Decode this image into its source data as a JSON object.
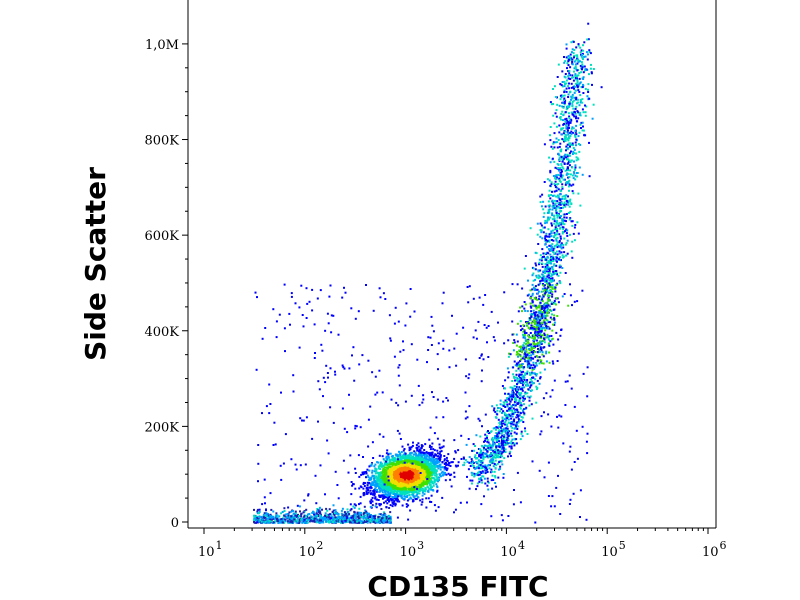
{
  "chart_data": {
    "type": "scatter",
    "title": "",
    "xlabel": "CD135 FITC",
    "ylabel": "Side Scatter",
    "x_scale": "log",
    "x_range": [
      10,
      1000000
    ],
    "y_range": [
      0,
      1050000
    ],
    "x_ticks": [
      {
        "value": 10,
        "base": "10",
        "exp": "1"
      },
      {
        "value": 100,
        "base": "10",
        "exp": "2"
      },
      {
        "value": 1000,
        "base": "10",
        "exp": "3"
      },
      {
        "value": 10000,
        "base": "10",
        "exp": "4"
      },
      {
        "value": 100000,
        "base": "10",
        "exp": "5"
      },
      {
        "value": 1000000,
        "base": "10",
        "exp": "6"
      }
    ],
    "y_ticks": [
      {
        "value": 0,
        "label": "0"
      },
      {
        "value": 200000,
        "label": "200K"
      },
      {
        "value": 400000,
        "label": "400K"
      },
      {
        "value": 600000,
        "label": "600K"
      },
      {
        "value": 800000,
        "label": "800K"
      },
      {
        "value": 1000000,
        "label": "1,0M"
      }
    ],
    "grid": false,
    "legend": "none",
    "density_colors": [
      "#1f1fb0",
      "#0000ff",
      "#00a0ff",
      "#00e0c0",
      "#40e000",
      "#f0e000",
      "#ff8000",
      "#e00000"
    ],
    "populations": [
      {
        "name_hint": "CD135-low cluster",
        "center_x": 1000,
        "center_y": 100000,
        "spread_log_x": 0.17,
        "spread_y": 22000,
        "density": "high"
      },
      {
        "name_hint": "CD135-high curved tail",
        "path": [
          [
            5000,
            100000
          ],
          [
            10000,
            200000
          ],
          [
            17000,
            350000
          ],
          [
            22000,
            450000
          ],
          [
            30000,
            600000
          ],
          [
            40000,
            800000
          ],
          [
            50000,
            1000000
          ]
        ],
        "density": "medium"
      },
      {
        "name_hint": "low-SSC baseline events",
        "range_x": [
          30,
          700
        ],
        "range_y": [
          0,
          40000
        ],
        "density": "low"
      }
    ]
  }
}
